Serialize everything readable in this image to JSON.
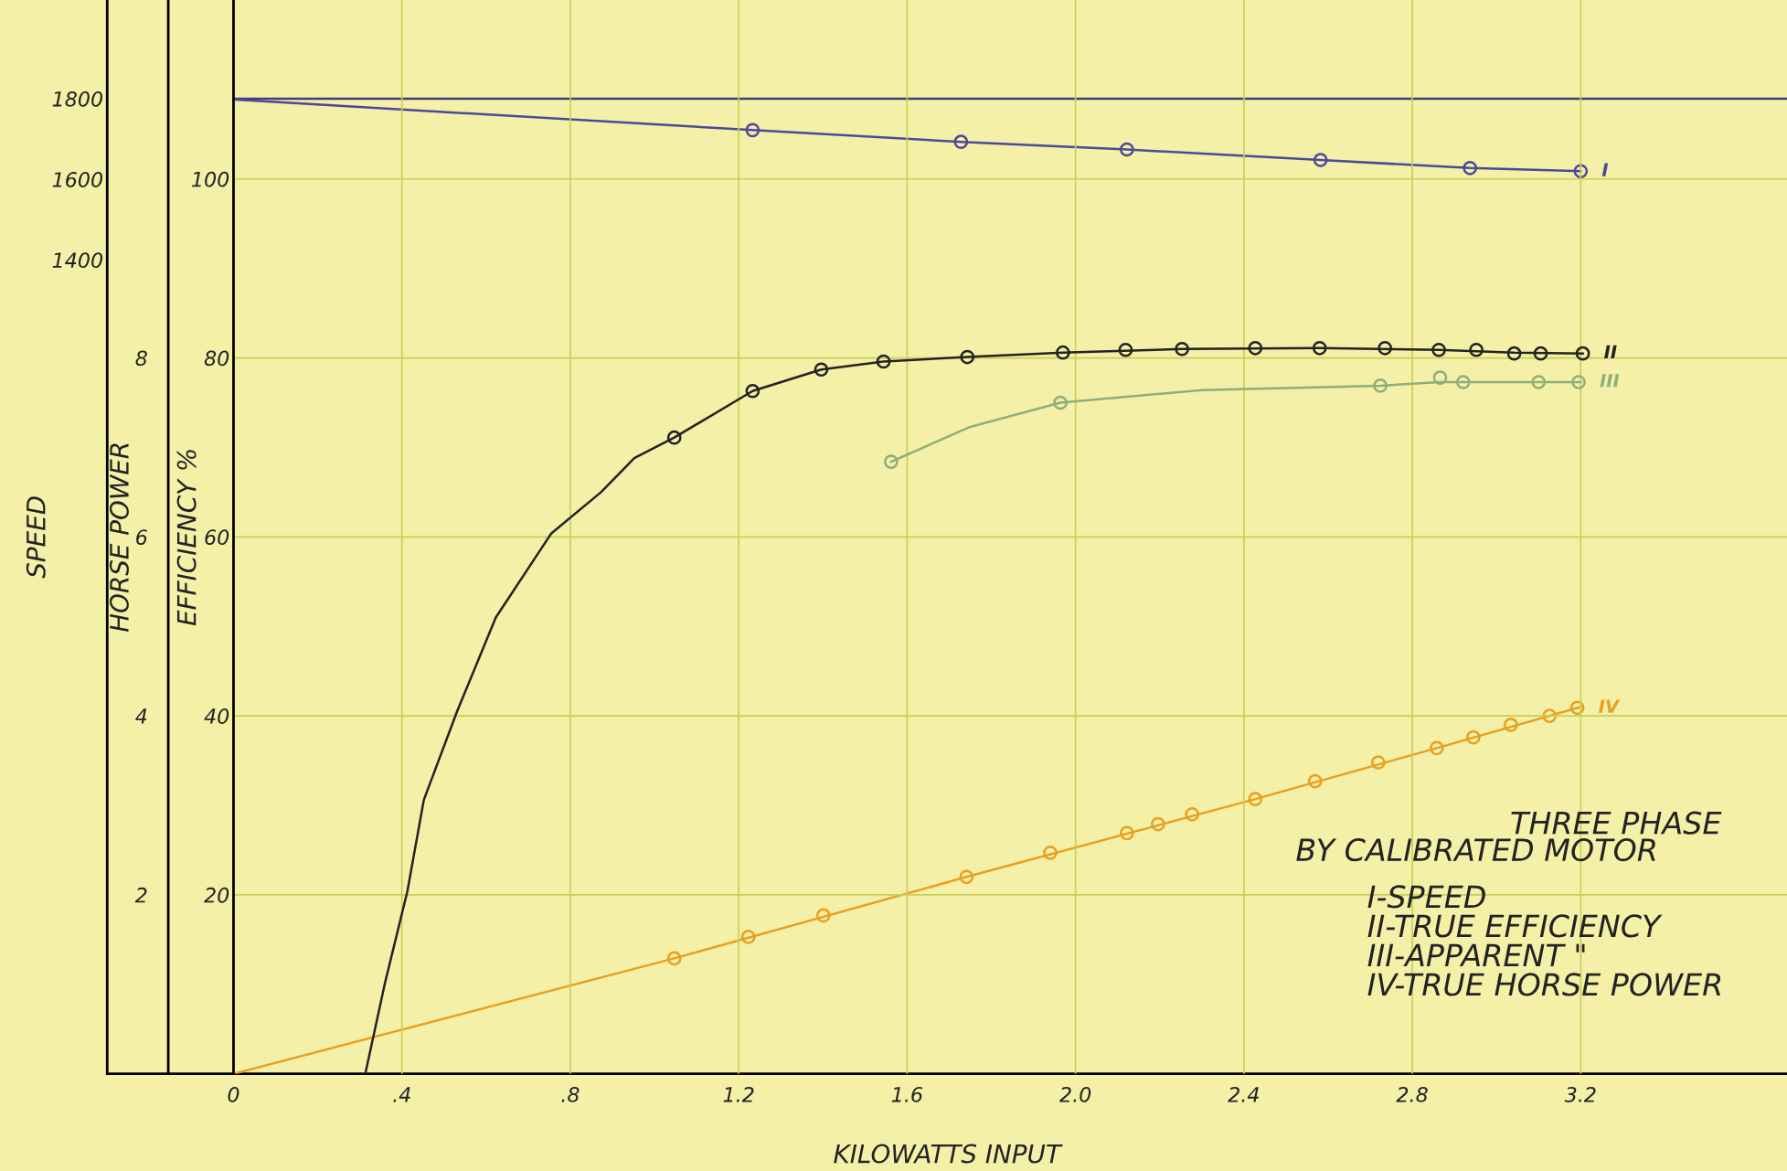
{
  "chart_data": {
    "type": "line",
    "xlabel": "KILOWATTS INPUT",
    "ylabel": "EFFICIENCY %",
    "y2label": "HORSE POWER",
    "y3label": "SPEED",
    "xlim": [
      -0.3,
      3.69
    ],
    "xticks": [
      0,
      {
        "value": 0.4,
        "label": ".4"
      },
      {
        "value": 0.8,
        "label": ".8"
      },
      1.2,
      1.6,
      {
        "value": 2.0,
        "label": "2.0"
      },
      2.4,
      2.8,
      3.2
    ],
    "ylim": [
      0,
      120
    ],
    "yticks": [
      20,
      40,
      60,
      80,
      100
    ],
    "y2lim": [
      0,
      12
    ],
    "y2ticks": [
      2,
      4,
      6,
      8
    ],
    "y3lim": [
      -620,
      2045
    ],
    "y3ticks": [
      1400,
      1600,
      1800
    ],
    "grid": true,
    "ref_lines": [
      {
        "axis": "y3",
        "value": 1800,
        "color": "#3d3d7a"
      },
      {
        "axis": "x",
        "value": -0.155,
        "color": "#000000"
      }
    ],
    "annotations": [
      "THREE PHASE",
      "BY CALIBRATED MOTOR",
      "I-SPEED",
      "II-TRUE EFFICIENCY",
      "III-APPARENT \"",
      "IV-TRUE HORSE POWER"
    ],
    "series": [
      {
        "axis": "y3",
        "color": "#4a4a9a",
        "x": [
          0,
          1.233,
          1.728,
          2.122,
          2.582,
          2.937,
          3.2
        ],
        "values": [
          1798,
          1722,
          1693,
          1674,
          1648,
          1628,
          1620
        ]
      },
      {
        "name": "I",
        "type": "scatter",
        "axis": "y3",
        "color": "#4a4a9a",
        "marker": "circle",
        "x": [
          1.233,
          1.728,
          2.122,
          2.582,
          2.937,
          3.2
        ],
        "values": [
          1722,
          1693,
          1674,
          1648,
          1628,
          1620
        ]
      },
      {
        "axis": "y",
        "color": "#222222",
        "x": [
          0.313,
          0.36,
          0.413,
          0.452,
          0.531,
          0.623,
          0.755,
          0.873,
          0.952,
          1.047,
          1.233,
          1.396,
          1.544,
          1.743,
          1.97,
          2.253,
          2.58,
          2.863,
          3.042,
          3.205
        ],
        "values": [
          0,
          10.2,
          20.4,
          30.6,
          40.5,
          51,
          60.4,
          65,
          68.8,
          71.1,
          76.3,
          78.7,
          79.6,
          80.1,
          80.6,
          81.0,
          81.1,
          80.9,
          80.6,
          80.5
        ]
      },
      {
        "name": "II",
        "type": "scatter",
        "axis": "y",
        "color": "#222222",
        "marker": "circle",
        "x": [
          1.047,
          1.233,
          1.396,
          1.544,
          1.743,
          1.97,
          2.119,
          2.253,
          2.427,
          2.58,
          2.735,
          2.863,
          2.952,
          3.042,
          3.105,
          3.205
        ],
        "values": [
          71.1,
          76.3,
          78.7,
          79.6,
          80.1,
          80.6,
          80.9,
          81.0,
          81.1,
          81.1,
          81.1,
          80.9,
          80.9,
          80.5,
          80.5,
          80.5
        ]
      },
      {
        "axis": "y",
        "color": "#8fae7a",
        "x": [
          1.562,
          1.75,
          1.964,
          2.3,
          2.724,
          2.866,
          3.1,
          3.2
        ],
        "values": [
          68.4,
          72.3,
          75.0,
          76.4,
          76.9,
          77.3,
          77.3,
          77.3
        ]
      },
      {
        "name": "III",
        "type": "scatter",
        "axis": "y",
        "color": "#8fae7a",
        "marker": "circle",
        "x": [
          1.562,
          1.964,
          2.724,
          2.866,
          2.921,
          3.1,
          3.195
        ],
        "values": [
          68.4,
          75.0,
          76.9,
          77.8,
          77.3,
          77.3,
          77.3
        ]
      },
      {
        "axis": "y2",
        "color": "#e8a020",
        "x": [
          0,
          1.047,
          1.741,
          2.427,
          2.858,
          3.2
        ],
        "values": [
          0,
          1.29,
          2.2,
          3.07,
          3.64,
          4.1
        ]
      },
      {
        "name": "IV",
        "type": "scatter",
        "axis": "y2",
        "color": "#e8a020",
        "marker": "circle",
        "x": [
          1.047,
          1.223,
          1.401,
          1.741,
          1.94,
          2.122,
          2.196,
          2.277,
          2.427,
          2.569,
          2.719,
          2.858,
          2.945,
          3.034,
          3.126,
          3.192
        ],
        "values": [
          1.29,
          1.53,
          1.77,
          2.2,
          2.47,
          2.69,
          2.79,
          2.9,
          3.07,
          3.27,
          3.48,
          3.64,
          3.76,
          3.9,
          4.0,
          4.09
        ]
      }
    ]
  }
}
